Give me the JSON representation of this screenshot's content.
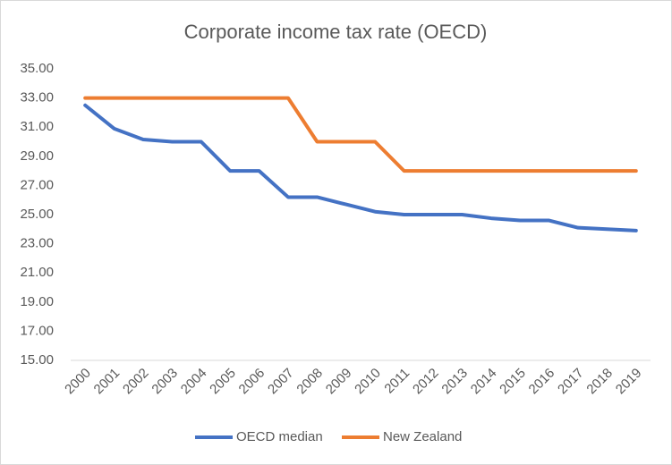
{
  "chart_data": {
    "type": "line",
    "title": "Corporate income tax rate (OECD)",
    "categories": [
      "2000",
      "2001",
      "2002",
      "2003",
      "2004",
      "2005",
      "2006",
      "2007",
      "2008",
      "2009",
      "2010",
      "2011",
      "2012",
      "2013",
      "2014",
      "2015",
      "2016",
      "2017",
      "2018",
      "2019"
    ],
    "series": [
      {
        "name": "OECD median",
        "color": "#4472c4",
        "values": [
          32.5,
          30.9,
          30.15,
          30.0,
          30.0,
          28.0,
          28.0,
          26.2,
          26.2,
          25.7,
          25.2,
          25.0,
          25.0,
          25.0,
          24.75,
          24.6,
          24.6,
          24.1,
          24.0,
          23.9
        ]
      },
      {
        "name": "New Zealand",
        "color": "#ed7d31",
        "values": [
          33,
          33,
          33,
          33,
          33,
          33,
          33,
          33,
          30,
          30,
          30,
          28,
          28,
          28,
          28,
          28,
          28,
          28,
          28,
          28
        ]
      }
    ],
    "ylim": [
      15,
      35
    ],
    "yticks": [
      {
        "value": 15,
        "label": "15.00"
      },
      {
        "value": 17,
        "label": "17.00"
      },
      {
        "value": 19,
        "label": "19.00"
      },
      {
        "value": 21,
        "label": "21.00"
      },
      {
        "value": 23,
        "label": "23.00"
      },
      {
        "value": 25,
        "label": "25.00"
      },
      {
        "value": 27,
        "label": "27.00"
      },
      {
        "value": 29,
        "label": "29.00"
      },
      {
        "value": 31,
        "label": "31.00"
      },
      {
        "value": 33,
        "label": "33.00"
      },
      {
        "value": 35,
        "label": "35.00"
      }
    ],
    "grid": false,
    "legend": "bottom"
  }
}
